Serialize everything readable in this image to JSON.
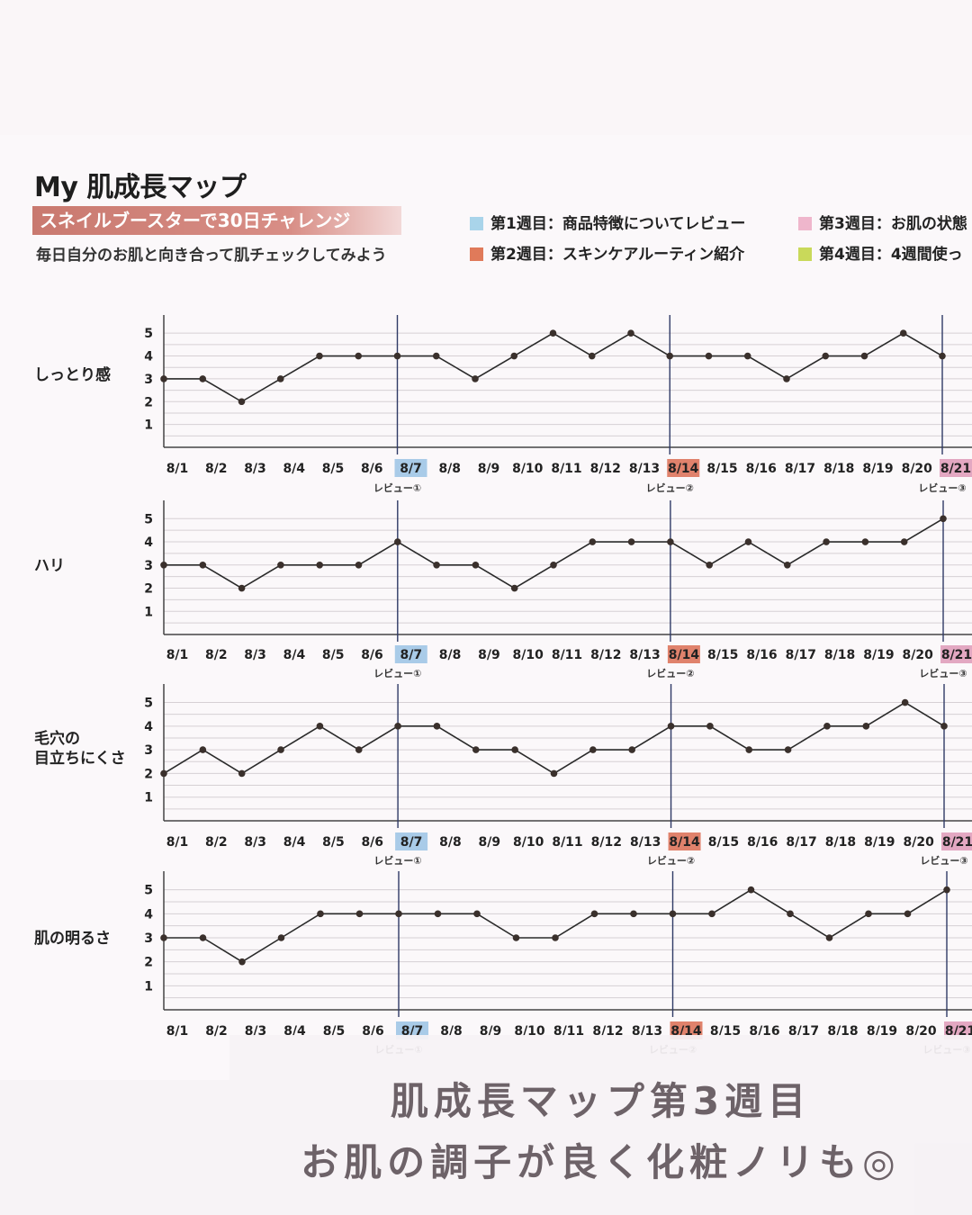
{
  "header": {
    "title": "My 肌成長マップ",
    "banner": "スネイルブースターで30日チャレンジ",
    "subtitle": "毎日自分のお肌と向き合って肌チェックしてみよう"
  },
  "legend": [
    {
      "label": "第1週目：商品特徴についてレビュー",
      "color": "#a9d4ea"
    },
    {
      "label": "第2週目：スキンケアルーティン紹介",
      "color": "#e07a5a"
    },
    {
      "label": "第3週目：お肌の状態",
      "color": "#efb6cc"
    },
    {
      "label": "第4週目：4週間使っ",
      "color": "#c9d95a"
    }
  ],
  "review_labels": [
    "レビュー①",
    "レビュー②",
    "レビュー③"
  ],
  "highlight_colors": {
    "8/7": "#a9cbe8",
    "8/14": "#e0826c",
    "8/21": "#e3a8c2"
  },
  "overlay": {
    "line1": "肌成長マップ第3週目",
    "line2": "お肌の調子が良く化粧ノリも◎"
  },
  "chart_data": [
    {
      "type": "line",
      "label": "しっとり感",
      "categories": [
        "8/1",
        "8/2",
        "8/3",
        "8/4",
        "8/5",
        "8/6",
        "8/7",
        "8/8",
        "8/9",
        "8/10",
        "8/11",
        "8/12",
        "8/13",
        "8/14",
        "8/15",
        "8/16",
        "8/17",
        "8/18",
        "8/19",
        "8/20",
        "8/21"
      ],
      "values": [
        3,
        3,
        2,
        3,
        4,
        4,
        4,
        4,
        3,
        4,
        5,
        4,
        5,
        4,
        4,
        4,
        3,
        4,
        4,
        5,
        4
      ],
      "yticks": [
        1,
        2,
        3,
        4,
        5
      ]
    },
    {
      "type": "line",
      "label": "ハリ",
      "categories": [
        "8/1",
        "8/2",
        "8/3",
        "8/4",
        "8/5",
        "8/6",
        "8/7",
        "8/8",
        "8/9",
        "8/10",
        "8/11",
        "8/12",
        "8/13",
        "8/14",
        "8/15",
        "8/16",
        "8/17",
        "8/18",
        "8/19",
        "8/20",
        "8/21"
      ],
      "values": [
        3,
        3,
        2,
        3,
        3,
        3,
        4,
        3,
        3,
        2,
        3,
        4,
        4,
        4,
        3,
        4,
        3,
        4,
        4,
        4,
        5
      ],
      "yticks": [
        1,
        2,
        3,
        4,
        5
      ]
    },
    {
      "type": "line",
      "label": "毛穴の\n目立ちにくさ",
      "categories": [
        "8/1",
        "8/2",
        "8/3",
        "8/4",
        "8/5",
        "8/6",
        "8/7",
        "8/8",
        "8/9",
        "8/10",
        "8/11",
        "8/12",
        "8/13",
        "8/14",
        "8/15",
        "8/16",
        "8/17",
        "8/18",
        "8/19",
        "8/20",
        "8/21"
      ],
      "values": [
        2,
        3,
        2,
        3,
        4,
        3,
        4,
        4,
        3,
        3,
        2,
        3,
        3,
        4,
        4,
        3,
        3,
        4,
        4,
        5,
        4
      ],
      "yticks": [
        1,
        2,
        3,
        4,
        5
      ]
    },
    {
      "type": "line",
      "label": "肌の明るさ",
      "categories": [
        "8/1",
        "8/2",
        "8/3",
        "8/4",
        "8/5",
        "8/6",
        "8/7",
        "8/8",
        "8/9",
        "8/10",
        "8/11",
        "8/12",
        "8/13",
        "8/14",
        "8/15",
        "8/16",
        "8/17",
        "8/18",
        "8/19",
        "8/20",
        "8/21"
      ],
      "values": [
        3,
        3,
        2,
        3,
        4,
        4,
        4,
        4,
        4,
        3,
        3,
        4,
        4,
        4,
        4,
        5,
        4,
        3,
        4,
        4,
        5
      ],
      "yticks": [
        1,
        2,
        3,
        4,
        5
      ]
    }
  ]
}
